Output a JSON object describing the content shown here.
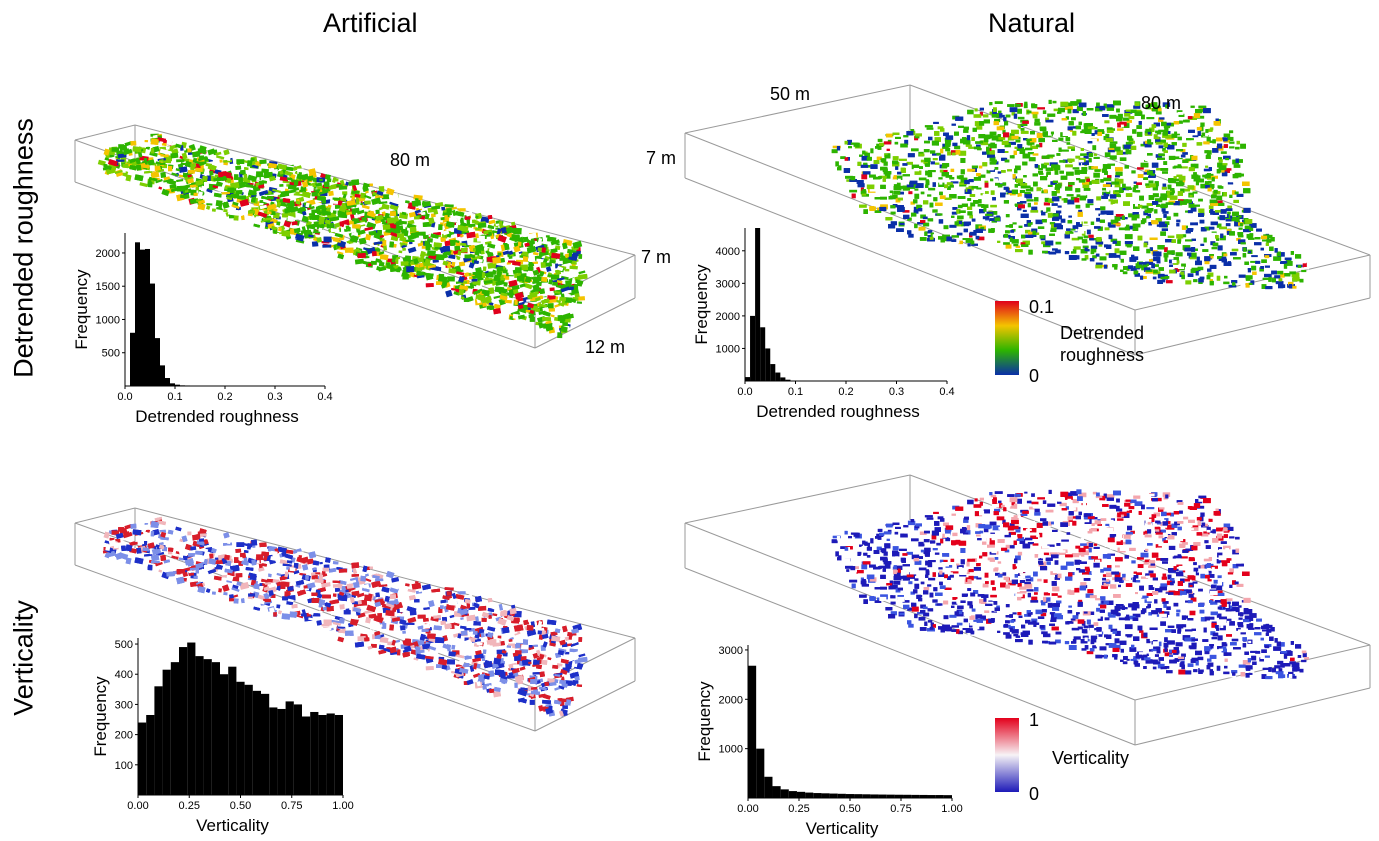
{
  "columns": [
    "Artificial",
    "Natural"
  ],
  "rows": [
    "Detrended roughness",
    "Verticality"
  ],
  "dimensions": {
    "artificial": {
      "length": "80 m",
      "height": "7 m",
      "width": "12 m"
    },
    "natural": {
      "width": "50 m",
      "length": "80 m",
      "height": "7 m"
    }
  },
  "colorbars": [
    {
      "label": "Detrended roughness",
      "max_label": "0.1",
      "min_label": "0",
      "colors": [
        "#e0001c",
        "#f4c400",
        "#2db400",
        "#0a2fa8"
      ]
    },
    {
      "label": "Verticality",
      "max_label": "1",
      "min_label": "0",
      "colors": [
        "#e3001b",
        "#f7f3f6",
        "#1d1ab8"
      ]
    }
  ],
  "chart_data": [
    {
      "type": "bar",
      "panel": "Artificial – Detrended roughness",
      "xlabel": "Detrended roughness",
      "ylabel": "Frequency",
      "xlim": [
        0,
        0.4
      ],
      "ylim": [
        0,
        2300
      ],
      "xticks": [
        0.0,
        0.1,
        0.2,
        0.3,
        0.4
      ],
      "xtick_labels": [
        "0.0",
        "0.1",
        "0.2",
        "0.3",
        "0.4"
      ],
      "yticks": [
        500,
        1000,
        1500,
        2000
      ],
      "ytick_labels": [
        "500",
        "1000",
        "1500",
        "2000"
      ],
      "bin_width": 0.01,
      "x": [
        0.005,
        0.015,
        0.025,
        0.035,
        0.045,
        0.055,
        0.065,
        0.075,
        0.085,
        0.095,
        0.105,
        0.115,
        0.125,
        0.135,
        0.145,
        0.155,
        0.165,
        0.175,
        0.185,
        0.195
      ],
      "values": [
        0,
        800,
        2160,
        2050,
        2060,
        1540,
        720,
        310,
        120,
        40,
        20,
        10,
        8,
        6,
        5,
        4,
        3,
        3,
        2,
        2
      ]
    },
    {
      "type": "bar",
      "panel": "Natural – Detrended roughness",
      "xlabel": "Detrended roughness",
      "ylabel": "Frequency",
      "xlim": [
        0,
        0.4
      ],
      "ylim": [
        0,
        4700
      ],
      "xticks": [
        0.0,
        0.1,
        0.2,
        0.3,
        0.4
      ],
      "xtick_labels": [
        "0.0",
        "0.1",
        "0.2",
        "0.3",
        "0.4"
      ],
      "yticks": [
        1000,
        2000,
        3000,
        4000
      ],
      "ytick_labels": [
        "1000",
        "2000",
        "3000",
        "4000"
      ],
      "bin_width": 0.01,
      "x": [
        0.005,
        0.015,
        0.025,
        0.035,
        0.045,
        0.055,
        0.065,
        0.075,
        0.085,
        0.095,
        0.105
      ],
      "values": [
        120,
        2000,
        4700,
        1650,
        1000,
        520,
        260,
        110,
        40,
        15,
        5
      ]
    },
    {
      "type": "bar",
      "panel": "Artificial – Verticality",
      "xlabel": "Verticality",
      "ylabel": "Frequency",
      "xlim": [
        0,
        1
      ],
      "ylim": [
        0,
        520
      ],
      "xticks": [
        0.0,
        0.25,
        0.5,
        0.75,
        1.0
      ],
      "xtick_labels": [
        "0.00",
        "0.25",
        "0.50",
        "0.75",
        "1.00"
      ],
      "yticks": [
        100,
        200,
        300,
        400,
        500
      ],
      "ytick_labels": [
        "100",
        "200",
        "300",
        "400",
        "500"
      ],
      "bin_width": 0.04,
      "x": [
        0.02,
        0.06,
        0.1,
        0.14,
        0.18,
        0.22,
        0.26,
        0.3,
        0.34,
        0.38,
        0.42,
        0.46,
        0.5,
        0.54,
        0.58,
        0.62,
        0.66,
        0.7,
        0.74,
        0.78,
        0.82,
        0.86,
        0.9,
        0.94,
        0.98
      ],
      "values": [
        240,
        265,
        360,
        415,
        440,
        490,
        505,
        460,
        450,
        440,
        400,
        425,
        375,
        365,
        345,
        335,
        290,
        285,
        310,
        300,
        260,
        275,
        265,
        270,
        265
      ]
    },
    {
      "type": "bar",
      "panel": "Natural – Verticality",
      "xlabel": "Verticality",
      "ylabel": "Frequency",
      "xlim": [
        0,
        1
      ],
      "ylim": [
        0,
        3100
      ],
      "xticks": [
        0.0,
        0.25,
        0.5,
        0.75,
        1.0
      ],
      "xtick_labels": [
        "0.00",
        "0.25",
        "0.50",
        "0.75",
        "1.00"
      ],
      "yticks": [
        1000,
        2000,
        3000
      ],
      "ytick_labels": [
        "1000",
        "2000",
        "3000"
      ],
      "bin_width": 0.04,
      "x": [
        0.02,
        0.06,
        0.1,
        0.14,
        0.18,
        0.22,
        0.26,
        0.3,
        0.34,
        0.38,
        0.42,
        0.46,
        0.5,
        0.54,
        0.58,
        0.62,
        0.66,
        0.7,
        0.74,
        0.78,
        0.82,
        0.86,
        0.9,
        0.94,
        0.98
      ],
      "values": [
        2680,
        1000,
        430,
        240,
        175,
        140,
        125,
        110,
        100,
        95,
        90,
        85,
        80,
        78,
        75,
        72,
        70,
        68,
        66,
        65,
        63,
        62,
        60,
        60,
        58
      ]
    }
  ]
}
